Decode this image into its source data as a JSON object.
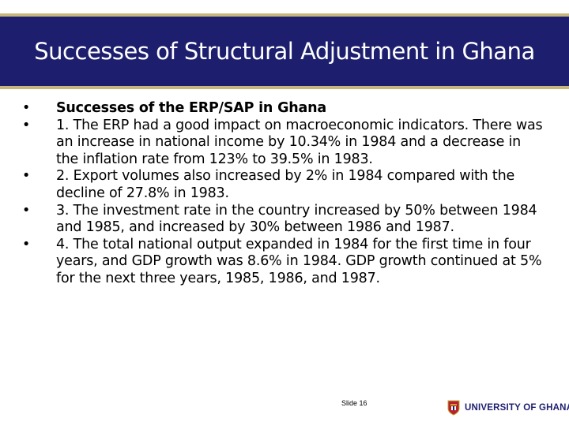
{
  "slide": {
    "title": "Successes of Structural Adjustment in Ghana",
    "bullet_marker": "•",
    "bullets": [
      "Successes of the ERP/SAP in Ghana",
      "1. The ERP had a good impact on macroeconomic indicators. There was an increase in national income by 10.34% in 1984 and a decrease in the inflation rate from 123% to 39.5% in 1983.",
      "2. Export volumes also increased by 2% in 1984 compared with the decline of 27.8% in 1983.",
      "3. The investment rate in the country increased by 50% between 1984 and 1985, and increased by 30% between 1986 and 1987.",
      "4. The total national output expanded in 1984 for the first time in four years, and GDP growth was 8.6% in 1984. GDP growth continued at 5% for the next three years, 1985, 1986, and 1987."
    ],
    "slide_number": "Slide 16"
  },
  "footer": {
    "logo_text": "UNIVERSITY OF GHANA",
    "logo_icon": "university-crest-icon"
  },
  "colors": {
    "title_band": "#1d1f6e",
    "title_border": "#c7b77a",
    "title_text": "#ffffff",
    "crest_red": "#b5242a",
    "crest_gold": "#c9a43a"
  }
}
